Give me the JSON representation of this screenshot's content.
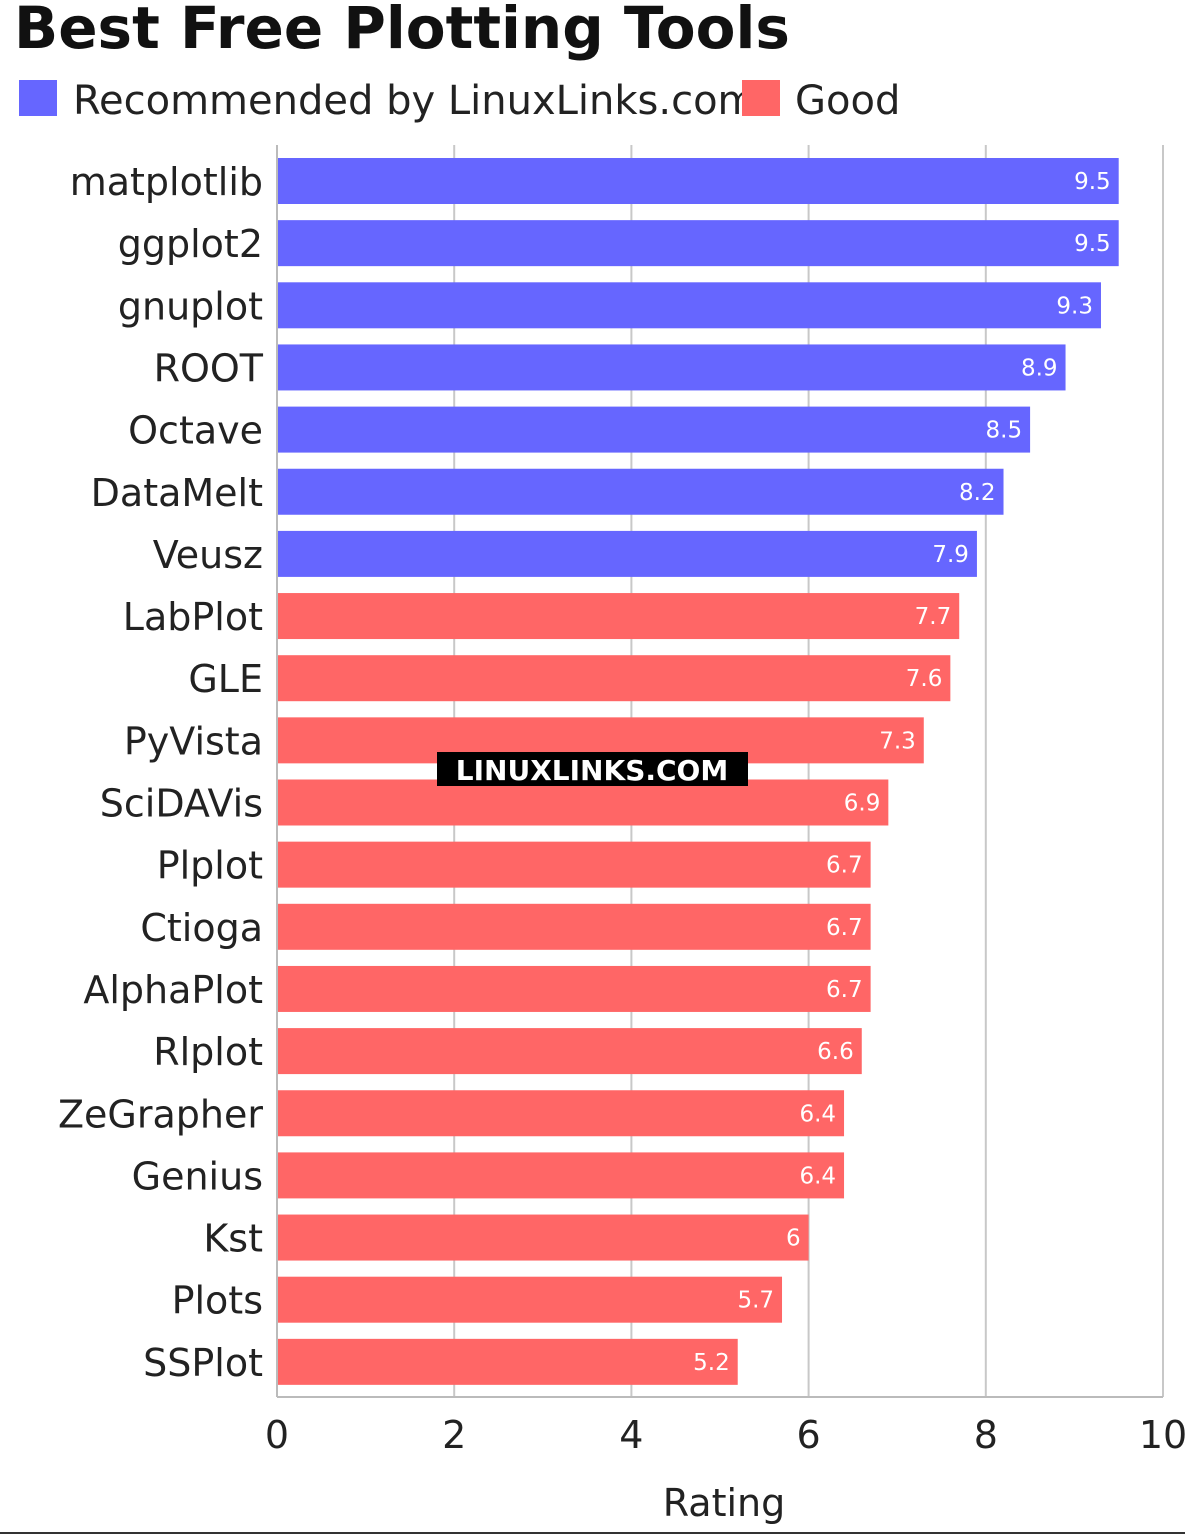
{
  "chart_data": {
    "type": "bar",
    "orientation": "horizontal",
    "title": "Best Free Plotting Tools",
    "xlabel": "Rating",
    "ylabel": "",
    "xlim": [
      0,
      10
    ],
    "ticks": [
      "0",
      "2",
      "4",
      "6",
      "8",
      "10"
    ],
    "grid": true,
    "legend_position": "top-left",
    "legend": [
      {
        "name": "Recommended by LinuxLinks.com",
        "color": "#6666ff"
      },
      {
        "name": "Good",
        "color": "#ff6666"
      }
    ],
    "categories": [
      "matplotlib",
      "ggplot2",
      "gnuplot",
      "ROOT",
      "Octave",
      "DataMelt",
      "Veusz",
      "LabPlot",
      "GLE",
      "PyVista",
      "SciDAVis",
      "Plplot",
      "Ctioga",
      "AlphaPlot",
      "Rlplot",
      "ZeGrapher",
      "Genius",
      "Kst",
      "Plots",
      "SSPlot"
    ],
    "values": [
      9.5,
      9.5,
      9.3,
      8.9,
      8.5,
      8.2,
      7.9,
      7.7,
      7.6,
      7.3,
      6.9,
      6.7,
      6.7,
      6.7,
      6.6,
      6.4,
      6.4,
      6,
      5.7,
      5.2
    ],
    "value_labels": [
      "9.5",
      "9.5",
      "9.3",
      "8.9",
      "8.5",
      "8.2",
      "7.9",
      "7.7",
      "7.6",
      "7.3",
      "6.9",
      "6.7",
      "6.7",
      "6.7",
      "6.6",
      "6.4",
      "6.4",
      "6",
      "5.7",
      "5.2"
    ],
    "groups": [
      "Recommended by LinuxLinks.com",
      "Recommended by LinuxLinks.com",
      "Recommended by LinuxLinks.com",
      "Recommended by LinuxLinks.com",
      "Recommended by LinuxLinks.com",
      "Recommended by LinuxLinks.com",
      "Recommended by LinuxLinks.com",
      "Good",
      "Good",
      "Good",
      "Good",
      "Good",
      "Good",
      "Good",
      "Good",
      "Good",
      "Good",
      "Good",
      "Good",
      "Good"
    ]
  },
  "watermark": "LINUXLINKS.COM"
}
